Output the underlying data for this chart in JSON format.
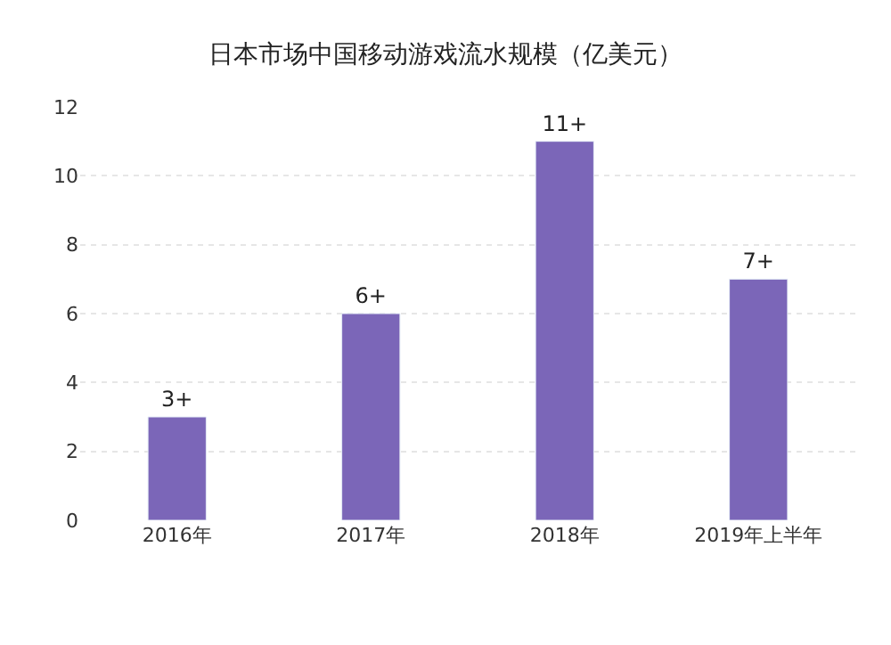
{
  "chart_data": {
    "type": "bar",
    "title": "日本市场中国移动游戏流水规模（亿美元）",
    "categories": [
      "2016年",
      "2017年",
      "2018年",
      "2019年上半年"
    ],
    "values": [
      3,
      6,
      11,
      7
    ],
    "value_labels": [
      "3+",
      "6+",
      "11+",
      "7+"
    ],
    "color": "#7b66b8",
    "ylim": [
      0,
      12
    ],
    "yticks": [
      0,
      2,
      4,
      6,
      8,
      10,
      12
    ],
    "grid": "y",
    "legend": false
  }
}
